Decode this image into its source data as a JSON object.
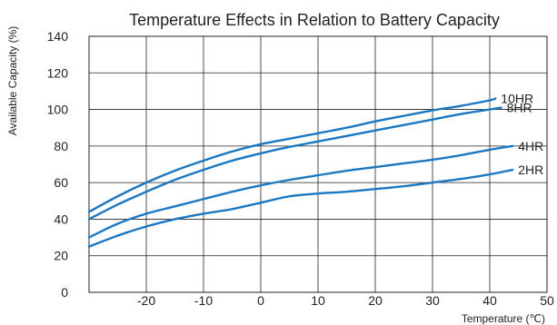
{
  "chart_data": {
    "type": "line",
    "title": "Temperature Effects in Relation to Battery Capacity",
    "xlabel": "Temperature (℃)",
    "ylabel": "Available Capacity (%)",
    "xlim": [
      -30,
      50
    ],
    "ylim": [
      0,
      140
    ],
    "xticks": [
      -20,
      -10,
      0,
      10,
      20,
      30,
      40,
      50
    ],
    "yticks": [
      0,
      20,
      40,
      60,
      80,
      100,
      120,
      140
    ],
    "grid": true,
    "line_color": "#1a78c2",
    "series": [
      {
        "name": "10HR",
        "x": [
          -30,
          -25,
          -20,
          -15,
          -10,
          -5,
          0,
          5,
          10,
          15,
          20,
          25,
          30,
          35,
          40,
          41
        ],
        "y": [
          44,
          52.5,
          60,
          66.5,
          72,
          77,
          81,
          84,
          87,
          90,
          93.5,
          96.5,
          99.5,
          102,
          105,
          106
        ]
      },
      {
        "name": "8HR",
        "x": [
          -30,
          -25,
          -20,
          -15,
          -10,
          -5,
          0,
          5,
          10,
          15,
          20,
          25,
          30,
          35,
          40,
          42
        ],
        "y": [
          40,
          48,
          55,
          61.5,
          67,
          72,
          76,
          79.5,
          82.5,
          85.5,
          88.5,
          91.5,
          94.5,
          97.5,
          100,
          101
        ]
      },
      {
        "name": "4HR",
        "x": [
          -30,
          -25,
          -20,
          -15,
          -10,
          -5,
          0,
          5,
          10,
          15,
          20,
          25,
          30,
          35,
          40,
          44
        ],
        "y": [
          30,
          37.5,
          43,
          47,
          51,
          55,
          58.5,
          61.5,
          64,
          66.5,
          68.5,
          70.5,
          72.5,
          75,
          78,
          80
        ]
      },
      {
        "name": "2HR",
        "x": [
          -30,
          -25,
          -20,
          -15,
          -10,
          -5,
          0,
          5,
          10,
          15,
          20,
          25,
          30,
          35,
          40,
          44
        ],
        "y": [
          25,
          31,
          36,
          40,
          43,
          45.5,
          49,
          52.5,
          54,
          55,
          56.5,
          58,
          60,
          62,
          64.5,
          67
        ]
      }
    ]
  }
}
